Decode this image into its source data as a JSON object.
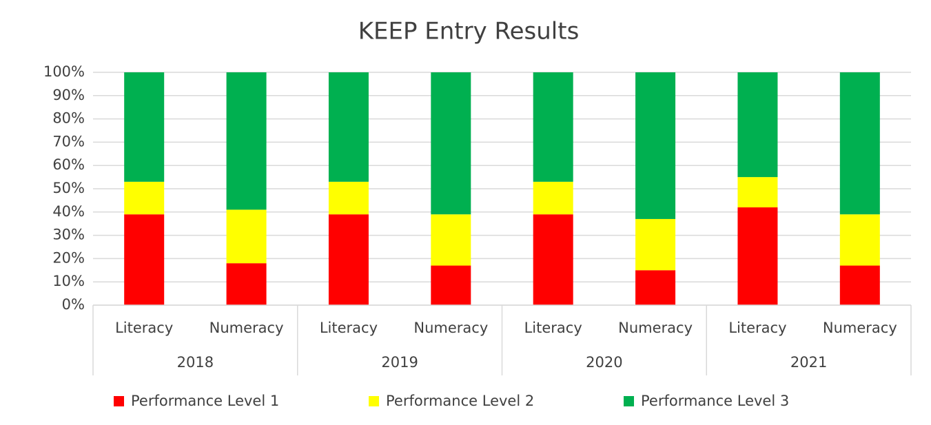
{
  "chart_data": {
    "type": "bar",
    "stacked": true,
    "title": "KEEP Entry Results",
    "categories": [
      "Literacy",
      "Numeracy",
      "Literacy",
      "Numeracy",
      "Literacy",
      "Numeracy",
      "Literacy",
      "Numeracy"
    ],
    "groups": [
      "2018",
      "2019",
      "2020",
      "2021"
    ],
    "series": [
      {
        "name": "Performance Level 1",
        "color": "#ff0000",
        "values": [
          39,
          18,
          39,
          17,
          39,
          15,
          42,
          17
        ]
      },
      {
        "name": "Performance Level 2",
        "color": "#ffff00",
        "values": [
          14,
          23,
          14,
          22,
          14,
          22,
          13,
          22
        ]
      },
      {
        "name": "Performance Level 3",
        "color": "#00b050",
        "values": [
          47,
          59,
          47,
          61,
          47,
          63,
          45,
          61
        ]
      }
    ],
    "ylim": [
      0,
      100
    ],
    "yticks": [
      {
        "value": 0,
        "label": "0%"
      },
      {
        "value": 10,
        "label": "10%"
      },
      {
        "value": 20,
        "label": "20%"
      },
      {
        "value": 30,
        "label": "30%"
      },
      {
        "value": 40,
        "label": "40%"
      },
      {
        "value": 50,
        "label": "50%"
      },
      {
        "value": 60,
        "label": "60%"
      },
      {
        "value": 70,
        "label": "70%"
      },
      {
        "value": 80,
        "label": "80%"
      },
      {
        "value": 90,
        "label": "90%"
      },
      {
        "value": 100,
        "label": "100%"
      }
    ],
    "grid": true,
    "legend": "bottom"
  }
}
